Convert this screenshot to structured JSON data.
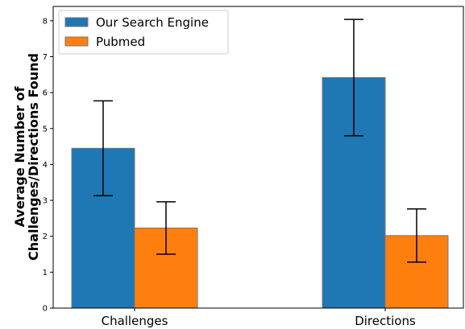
{
  "chart_data": {
    "type": "bar",
    "categories": [
      "Challenges",
      "Directions"
    ],
    "series": [
      {
        "name": "Our Search Engine",
        "color": "#1f77b4",
        "values": [
          4.45,
          6.42
        ],
        "error": [
          1.32,
          1.62
        ]
      },
      {
        "name": "Pubmed",
        "color": "#ff7f0e",
        "values": [
          2.23,
          2.02
        ],
        "error": [
          0.73,
          0.74
        ]
      }
    ],
    "ylabel": [
      "Average Number of",
      "Challenges/Directions Found"
    ],
    "xlabel": "",
    "ylim": [
      0,
      8.4
    ],
    "yticks": [
      0,
      1,
      2,
      3,
      4,
      5,
      6,
      7,
      8
    ],
    "grid": false,
    "legend_position": "top-left"
  }
}
